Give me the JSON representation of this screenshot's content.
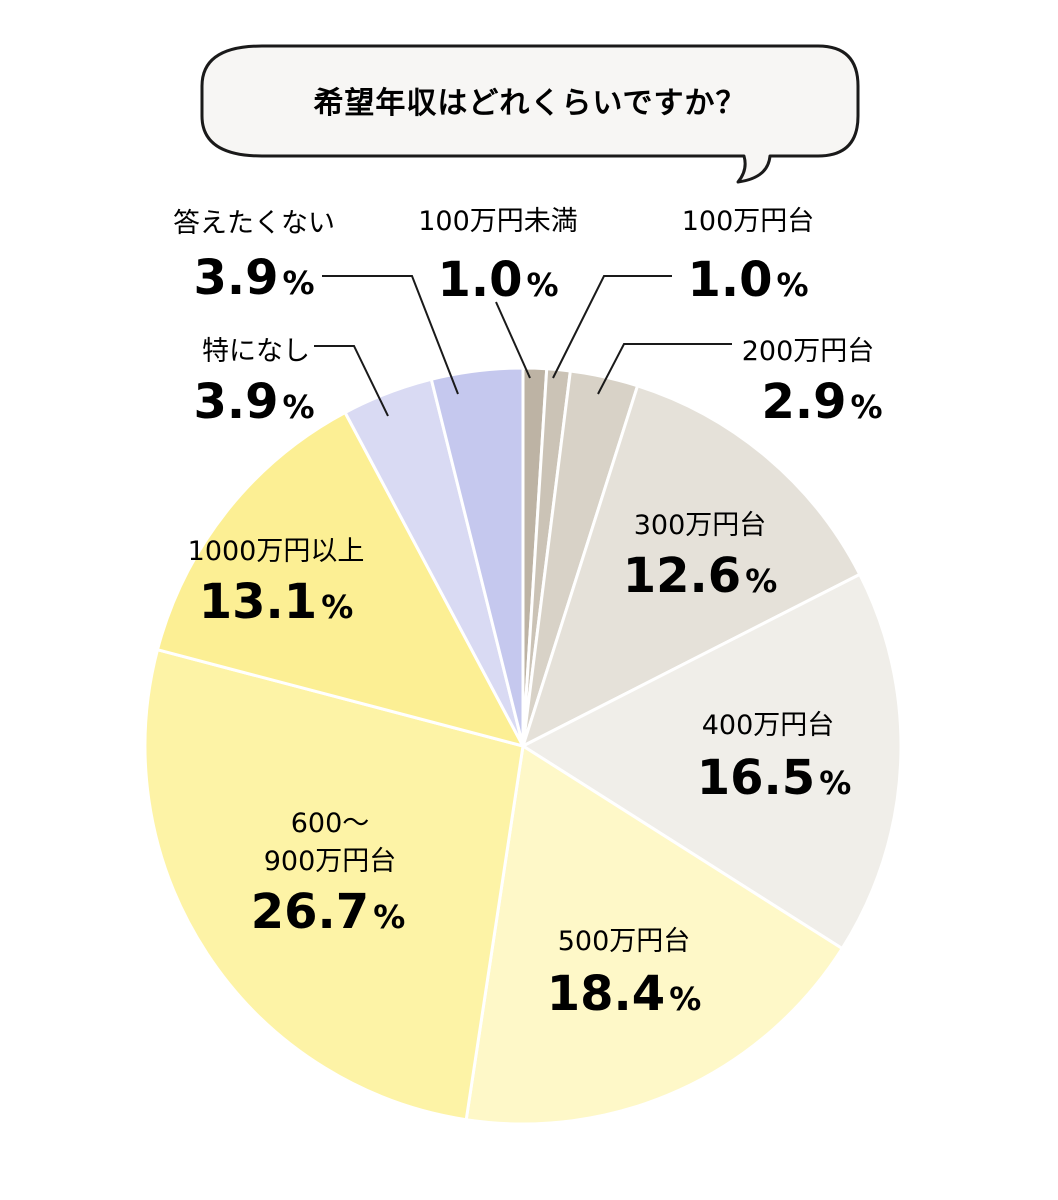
{
  "chart_data": {
    "type": "pie",
    "title": "希望年収はどれくらいですか？",
    "unit": "%",
    "slices": [
      {
        "label": "100万円未満",
        "value": 1.0,
        "color": "#bdb3a4"
      },
      {
        "label": "100万円台",
        "value": 1.0,
        "color": "#cbc3b6"
      },
      {
        "label": "200万円台",
        "value": 2.9,
        "color": "#d8d2c7"
      },
      {
        "label": "300万円台",
        "value": 12.6,
        "color": "#e5e1d9"
      },
      {
        "label": "400万円台",
        "value": 16.5,
        "color": "#f0eee9"
      },
      {
        "label": "500万円台",
        "value": 18.4,
        "color": "#fef8c8"
      },
      {
        "label": "600～\n900万円台",
        "value": 26.7,
        "color": "#fdf3a6"
      },
      {
        "label": "1000万円以上",
        "value": 13.1,
        "color": "#fcef94"
      },
      {
        "label": "特になし",
        "value": 3.9,
        "color": "#d9daf3"
      },
      {
        "label": "答えたくない",
        "value": 3.9,
        "color": "#c5c8ee"
      }
    ],
    "value_labels": [
      "1.0",
      "1.0",
      "2.9",
      "12.6",
      "16.5",
      "18.4",
      "26.7",
      "13.1",
      "3.9",
      "3.9"
    ],
    "start_angle": "12 o'clock",
    "direction": "clockwise",
    "legend": "none",
    "label_placement": "inside for large slices, outside with leader lines for small slices"
  }
}
